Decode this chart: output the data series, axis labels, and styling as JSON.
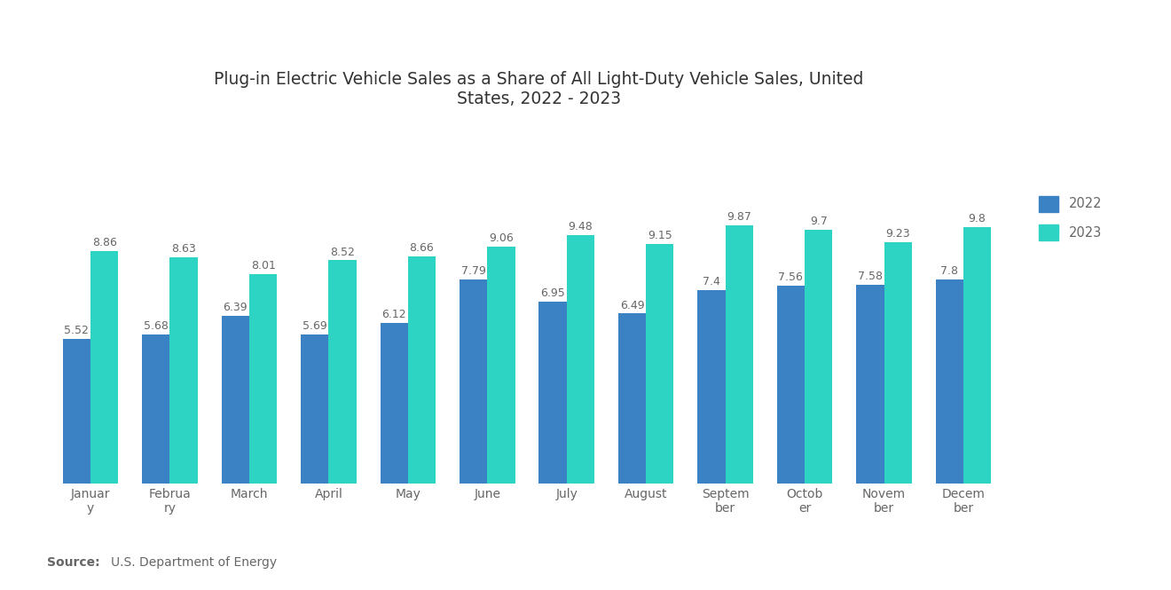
{
  "title": "Plug-in Electric Vehicle Sales as a Share of All Light-Duty Vehicle Sales, United\nStates, 2022 - 2023",
  "categories": [
    "January",
    "February",
    "March",
    "April",
    "May",
    "June",
    "July",
    "August",
    "September",
    "October",
    "November",
    "December"
  ],
  "categories_wrapped": [
    "Januar\ny",
    "Februa\nry",
    "March",
    "April",
    "May",
    "June",
    "July",
    "August",
    "Septem\nber",
    "Octob\ner",
    "Novem\nber",
    "Decem\nber"
  ],
  "values_2022": [
    5.52,
    5.68,
    6.39,
    5.69,
    6.12,
    7.79,
    6.95,
    6.49,
    7.4,
    7.56,
    7.58,
    7.8
  ],
  "values_2023": [
    8.86,
    8.63,
    8.01,
    8.52,
    8.66,
    9.06,
    9.48,
    9.15,
    9.87,
    9.7,
    9.23,
    9.8
  ],
  "color_2022": "#3b82c4",
  "color_2023": "#2dd4c4",
  "bar_width": 0.35,
  "legend_labels": [
    "2022",
    "2023"
  ],
  "source_bold": "Source:",
  "source_text": " U.S. Department of Energy",
  "ylim": [
    0,
    13.5
  ],
  "title_fontsize": 13.5,
  "label_fontsize": 10.5,
  "tick_fontsize": 10,
  "value_fontsize": 9,
  "source_fontsize": 10,
  "background_color": "#ffffff",
  "text_color": "#666666"
}
